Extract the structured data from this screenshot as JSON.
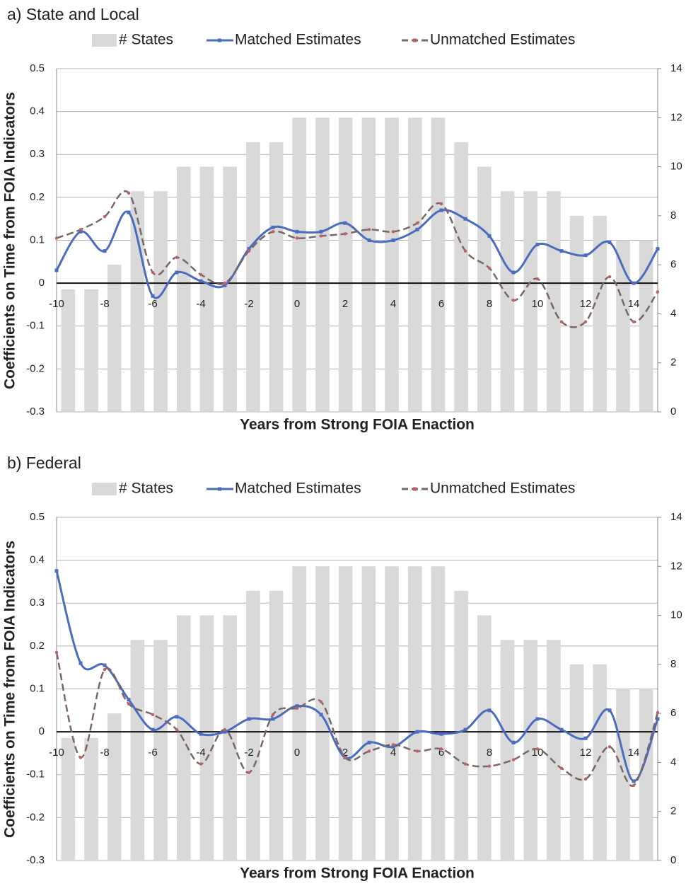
{
  "chart_data": [
    {
      "type": "combo",
      "title": "a) State and Local",
      "xlabel": "Years from Strong FOIA Enaction",
      "ylabel": "Coefficients on Time from FOIA Indicators",
      "categories": [
        -10,
        null,
        -8,
        null,
        -6,
        null,
        -4,
        null,
        -2,
        null,
        0,
        null,
        2,
        null,
        4,
        null,
        6,
        null,
        8,
        null,
        10,
        null,
        12,
        null,
        14,
        null
      ],
      "ylim": [
        -0.3,
        0.5
      ],
      "yticks": [
        -0.3,
        -0.2,
        -0.1,
        0,
        0.1,
        0.2,
        0.3,
        0.4,
        0.5
      ],
      "y2lim": [
        0,
        14
      ],
      "y2ticks": [
        0,
        2,
        4,
        6,
        8,
        10,
        12,
        14
      ],
      "grid": true,
      "series": [
        {
          "name": "# States",
          "kind": "bar",
          "axis": "y2",
          "color": "#d9d9d9",
          "values": [
            5,
            5,
            6,
            9,
            9,
            10,
            10,
            10,
            11,
            11,
            12,
            12,
            12,
            12,
            12,
            12,
            12,
            11,
            10,
            9,
            9,
            9,
            8,
            8,
            7,
            7
          ]
        },
        {
          "name": "Matched Estimates",
          "kind": "line",
          "color": "#4a6cbf",
          "values": [
            0.03,
            0.12,
            0.075,
            0.165,
            -0.03,
            0.025,
            0.005,
            -0.005,
            0.08,
            0.13,
            0.12,
            0.12,
            0.14,
            0.1,
            0.1,
            0.125,
            0.17,
            0.15,
            0.11,
            0.025,
            0.09,
            0.075,
            0.065,
            0.095,
            0.0,
            0.08
          ]
        },
        {
          "name": "Unmatched Estimates",
          "kind": "dashed",
          "color": "#7a6666",
          "values": [
            0.105,
            0.125,
            0.155,
            0.21,
            0.025,
            0.06,
            0.02,
            0.0,
            0.075,
            0.12,
            0.105,
            0.11,
            0.115,
            0.125,
            0.12,
            0.14,
            0.185,
            0.075,
            0.035,
            -0.04,
            0.01,
            -0.09,
            -0.09,
            0.015,
            -0.09,
            -0.02
          ]
        }
      ]
    },
    {
      "type": "combo",
      "title": "b) Federal",
      "xlabel": "Years from Strong FOIA Enaction",
      "ylabel": "Coefficients on Time from FOIA Indicators",
      "categories": [
        -10,
        null,
        -8,
        null,
        -6,
        null,
        -4,
        null,
        -2,
        null,
        0,
        null,
        2,
        null,
        4,
        null,
        6,
        null,
        8,
        null,
        10,
        null,
        12,
        null,
        14,
        null
      ],
      "ylim": [
        -0.3,
        0.5
      ],
      "yticks": [
        -0.3,
        -0.2,
        -0.1,
        0,
        0.1,
        0.2,
        0.3,
        0.4,
        0.5
      ],
      "y2lim": [
        0,
        14
      ],
      "y2ticks": [
        0,
        2,
        4,
        6,
        8,
        10,
        12,
        14
      ],
      "grid": true,
      "series": [
        {
          "name": "# States",
          "kind": "bar",
          "axis": "y2",
          "color": "#d9d9d9",
          "values": [
            5,
            5,
            6,
            9,
            9,
            10,
            10,
            10,
            11,
            11,
            12,
            12,
            12,
            12,
            12,
            12,
            12,
            11,
            10,
            9,
            9,
            9,
            8,
            8,
            7,
            7
          ]
        },
        {
          "name": "Matched Estimates",
          "kind": "line",
          "color": "#4a6cbf",
          "values": [
            0.375,
            0.16,
            0.155,
            0.075,
            0.005,
            0.035,
            -0.005,
            0.0,
            0.03,
            0.03,
            0.06,
            0.04,
            -0.06,
            -0.025,
            -0.035,
            0.0,
            -0.005,
            0.005,
            0.05,
            -0.025,
            0.03,
            0.005,
            -0.015,
            0.05,
            -0.115,
            0.03
          ]
        },
        {
          "name": "Unmatched Estimates",
          "kind": "dashed",
          "color": "#7a6666",
          "values": [
            0.185,
            -0.06,
            0.145,
            0.065,
            0.04,
            0.005,
            -0.075,
            0.005,
            -0.095,
            0.04,
            0.055,
            0.07,
            -0.06,
            -0.045,
            -0.03,
            -0.045,
            -0.04,
            -0.075,
            -0.08,
            -0.065,
            -0.04,
            -0.085,
            -0.11,
            -0.035,
            -0.125,
            0.045
          ]
        }
      ]
    }
  ]
}
